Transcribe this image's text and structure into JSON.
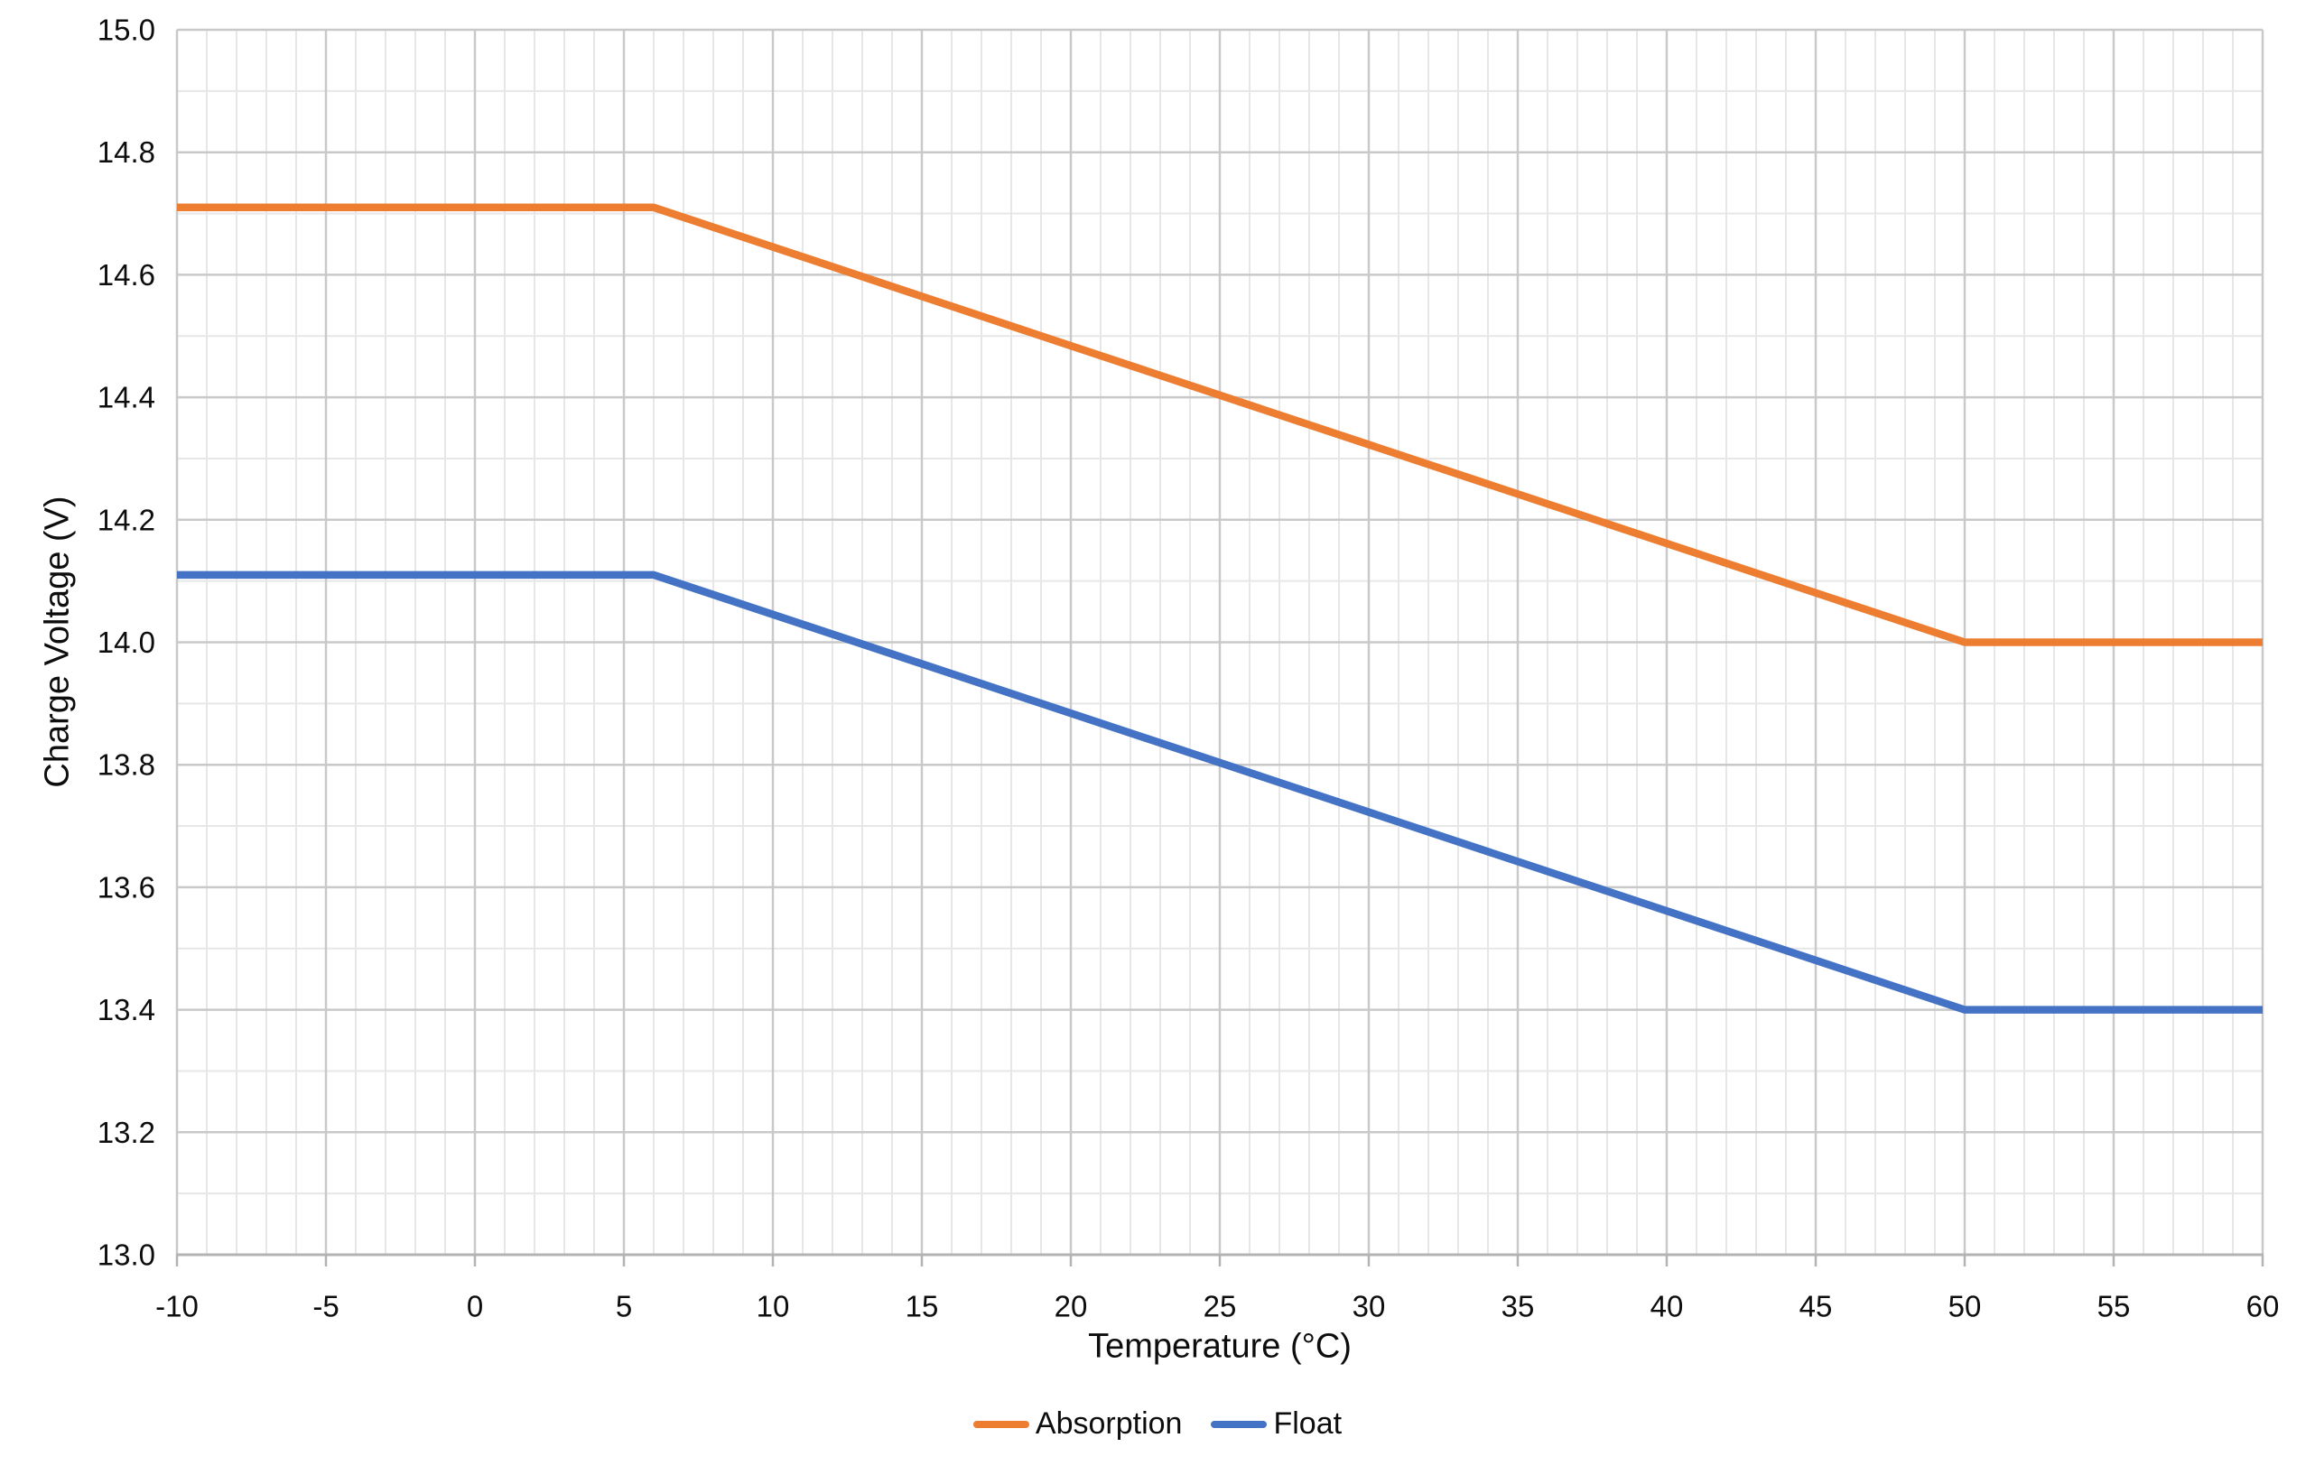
{
  "chart_data": {
    "type": "line",
    "title": "",
    "xlabel": "Temperature (°C)",
    "ylabel": "Charge Voltage (V)",
    "x_axis": {
      "min": -10,
      "max": 60,
      "major_step": 5,
      "minor_step": 1,
      "tick_labels": [
        "-10",
        "-5",
        "0",
        "5",
        "10",
        "15",
        "20",
        "25",
        "30",
        "35",
        "40",
        "45",
        "50",
        "55",
        "60"
      ]
    },
    "y_axis": {
      "min": 13.0,
      "max": 15.0,
      "major_step": 0.2,
      "minor_step": 0.1,
      "tick_labels": [
        "13.0",
        "13.2",
        "13.4",
        "13.6",
        "13.8",
        "14.0",
        "14.2",
        "14.4",
        "14.6",
        "14.8",
        "15.0"
      ]
    },
    "series": [
      {
        "name": "Absorption",
        "color": "#ED7D31",
        "points": [
          [
            -10,
            14.71
          ],
          [
            6,
            14.71
          ],
          [
            50,
            14.0
          ],
          [
            60,
            14.0
          ]
        ]
      },
      {
        "name": "Float",
        "color": "#4472C4",
        "points": [
          [
            -10,
            14.11
          ],
          [
            6,
            14.11
          ],
          [
            50,
            13.4
          ],
          [
            60,
            13.4
          ]
        ]
      }
    ],
    "legend_position": "bottom",
    "grid": {
      "major_color": "#C9C9C9",
      "minor_color": "#E7E7E7",
      "axis_color": "#B3B3B3",
      "grid_on": true
    }
  }
}
